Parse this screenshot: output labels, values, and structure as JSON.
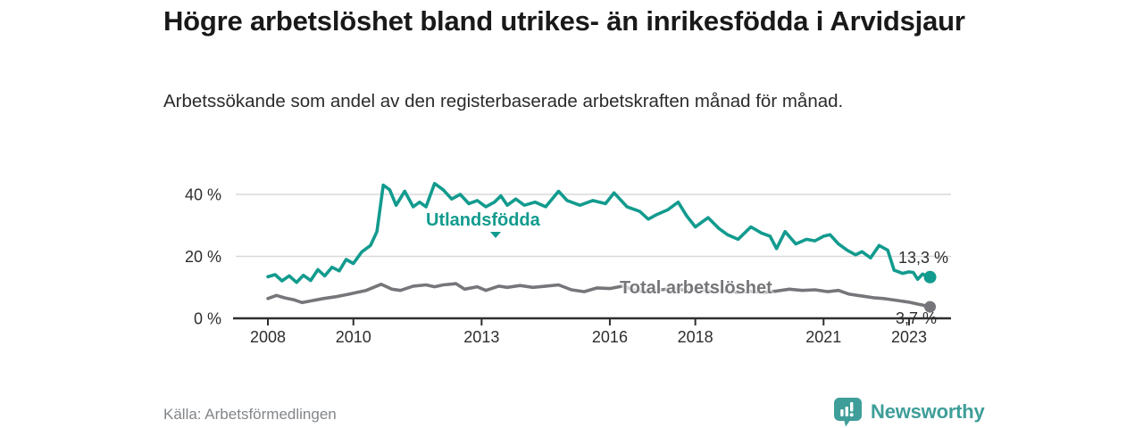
{
  "header": {
    "title": "Högre arbetslöshet bland utrikes- än inrikesfödda i Arvidsjaur",
    "subtitle": "Arbetssökande som andel av den registerbaserade arbetskraften månad för månad."
  },
  "footer": {
    "source": "Källa: Arbetsförmedlingen",
    "brand_name": "Newsworthy"
  },
  "colors": {
    "foreign_born_line": "#129b8e",
    "total_line": "#76767a",
    "axis": "#2f2f2f",
    "grid": "#d9d9d9",
    "tick_text": "#2e2e2e",
    "brand_teal": "#3f9e99",
    "title_text": "#191919",
    "muted_text": "#82868a"
  },
  "chart_data": {
    "type": "line",
    "unit": "%",
    "xlim": [
      2007.1,
      2023.98
    ],
    "ylim": [
      0,
      45
    ],
    "grid": "horizontal-only",
    "x_ticks": [
      2008,
      2010,
      2013,
      2016,
      2018,
      2021,
      2023
    ],
    "x_tick_labels": [
      "2008",
      "2010",
      "2013",
      "2016",
      "2018",
      "2021",
      "2023"
    ],
    "y_ticks": [
      0,
      20,
      40
    ],
    "y_tick_labels": [
      "0 %",
      "20 %",
      "40 %"
    ],
    "legend_position": "inline-on-lines",
    "series": [
      {
        "name": "Utlandsfödda",
        "color": "#129b8e",
        "end_label": "13,3 %",
        "end_value": 13.3,
        "points": [
          [
            2008.0,
            13.4
          ],
          [
            2008.17,
            14.1
          ],
          [
            2008.33,
            12.1
          ],
          [
            2008.5,
            13.7
          ],
          [
            2008.67,
            11.6
          ],
          [
            2008.83,
            13.9
          ],
          [
            2009.0,
            12.2
          ],
          [
            2009.17,
            15.7
          ],
          [
            2009.33,
            13.7
          ],
          [
            2009.5,
            16.5
          ],
          [
            2009.67,
            15.3
          ],
          [
            2009.83,
            19.0
          ],
          [
            2010.0,
            17.7
          ],
          [
            2010.2,
            21.5
          ],
          [
            2010.4,
            23.5
          ],
          [
            2010.55,
            28.0
          ],
          [
            2010.7,
            43.0
          ],
          [
            2010.85,
            41.5
          ],
          [
            2011.0,
            36.5
          ],
          [
            2011.2,
            41.0
          ],
          [
            2011.4,
            36.0
          ],
          [
            2011.55,
            37.5
          ],
          [
            2011.7,
            36.0
          ],
          [
            2011.9,
            43.5
          ],
          [
            2012.1,
            41.5
          ],
          [
            2012.3,
            38.5
          ],
          [
            2012.5,
            40.0
          ],
          [
            2012.7,
            37.0
          ],
          [
            2012.9,
            38.0
          ],
          [
            2013.1,
            36.0
          ],
          [
            2013.3,
            37.5
          ],
          [
            2013.45,
            39.5
          ],
          [
            2013.6,
            36.5
          ],
          [
            2013.8,
            38.5
          ],
          [
            2014.0,
            36.5
          ],
          [
            2014.25,
            37.5
          ],
          [
            2014.5,
            36.0
          ],
          [
            2014.8,
            41.0
          ],
          [
            2015.0,
            38.0
          ],
          [
            2015.3,
            36.5
          ],
          [
            2015.6,
            38.0
          ],
          [
            2015.9,
            37.0
          ],
          [
            2016.1,
            40.5
          ],
          [
            2016.4,
            36.0
          ],
          [
            2016.7,
            34.5
          ],
          [
            2016.9,
            32.0
          ],
          [
            2017.1,
            33.5
          ],
          [
            2017.35,
            35.0
          ],
          [
            2017.6,
            37.5
          ],
          [
            2017.8,
            33.0
          ],
          [
            2018.0,
            29.5
          ],
          [
            2018.3,
            32.5
          ],
          [
            2018.55,
            29.0
          ],
          [
            2018.75,
            27.0
          ],
          [
            2019.0,
            25.5
          ],
          [
            2019.3,
            29.5
          ],
          [
            2019.55,
            27.5
          ],
          [
            2019.75,
            26.5
          ],
          [
            2019.9,
            22.5
          ],
          [
            2020.1,
            28.0
          ],
          [
            2020.35,
            24.0
          ],
          [
            2020.6,
            25.5
          ],
          [
            2020.8,
            25.0
          ],
          [
            2021.0,
            26.5
          ],
          [
            2021.15,
            27.0
          ],
          [
            2021.35,
            24.0
          ],
          [
            2021.55,
            22.0
          ],
          [
            2021.75,
            20.5
          ],
          [
            2021.9,
            21.5
          ],
          [
            2022.1,
            19.5
          ],
          [
            2022.3,
            23.5
          ],
          [
            2022.5,
            22.0
          ],
          [
            2022.65,
            15.5
          ],
          [
            2022.85,
            14.5
          ],
          [
            2023.0,
            15.0
          ],
          [
            2023.1,
            14.8
          ],
          [
            2023.2,
            12.6
          ],
          [
            2023.32,
            14.3
          ],
          [
            2023.45,
            13.3
          ]
        ]
      },
      {
        "name": "Total arbetslöshet",
        "color": "#76767a",
        "end_label": "3,7 %",
        "end_value": 3.7,
        "points": [
          [
            2008.0,
            6.4
          ],
          [
            2008.2,
            7.4
          ],
          [
            2008.4,
            6.6
          ],
          [
            2008.6,
            6.0
          ],
          [
            2008.8,
            5.1
          ],
          [
            2009.0,
            5.6
          ],
          [
            2009.3,
            6.4
          ],
          [
            2009.6,
            7.0
          ],
          [
            2009.9,
            7.8
          ],
          [
            2010.1,
            8.4
          ],
          [
            2010.3,
            9.0
          ],
          [
            2010.65,
            11.0
          ],
          [
            2010.9,
            9.4
          ],
          [
            2011.1,
            9.0
          ],
          [
            2011.4,
            10.4
          ],
          [
            2011.7,
            10.8
          ],
          [
            2011.9,
            10.2
          ],
          [
            2012.1,
            10.8
          ],
          [
            2012.4,
            11.2
          ],
          [
            2012.6,
            9.4
          ],
          [
            2012.9,
            10.2
          ],
          [
            2013.1,
            9.0
          ],
          [
            2013.4,
            10.4
          ],
          [
            2013.6,
            10.0
          ],
          [
            2013.9,
            10.6
          ],
          [
            2014.2,
            10.0
          ],
          [
            2014.5,
            10.4
          ],
          [
            2014.8,
            10.8
          ],
          [
            2015.1,
            9.2
          ],
          [
            2015.4,
            8.6
          ],
          [
            2015.7,
            9.8
          ],
          [
            2016.0,
            9.6
          ],
          [
            2016.3,
            10.4
          ],
          [
            2016.6,
            9.0
          ],
          [
            2016.9,
            8.6
          ],
          [
            2017.2,
            9.2
          ],
          [
            2017.5,
            9.6
          ],
          [
            2017.8,
            9.0
          ],
          [
            2018.1,
            9.4
          ],
          [
            2018.4,
            8.6
          ],
          [
            2018.7,
            9.0
          ],
          [
            2019.0,
            8.4
          ],
          [
            2019.3,
            8.8
          ],
          [
            2019.6,
            8.4
          ],
          [
            2019.9,
            8.8
          ],
          [
            2020.2,
            9.4
          ],
          [
            2020.5,
            9.0
          ],
          [
            2020.8,
            9.2
          ],
          [
            2021.1,
            8.6
          ],
          [
            2021.35,
            9.0
          ],
          [
            2021.6,
            7.8
          ],
          [
            2021.8,
            7.4
          ],
          [
            2022.0,
            7.0
          ],
          [
            2022.2,
            6.6
          ],
          [
            2022.4,
            6.4
          ],
          [
            2022.6,
            6.0
          ],
          [
            2022.8,
            5.6
          ],
          [
            2023.0,
            5.2
          ],
          [
            2023.2,
            4.6
          ],
          [
            2023.32,
            4.3
          ],
          [
            2023.45,
            3.7
          ]
        ]
      }
    ]
  }
}
